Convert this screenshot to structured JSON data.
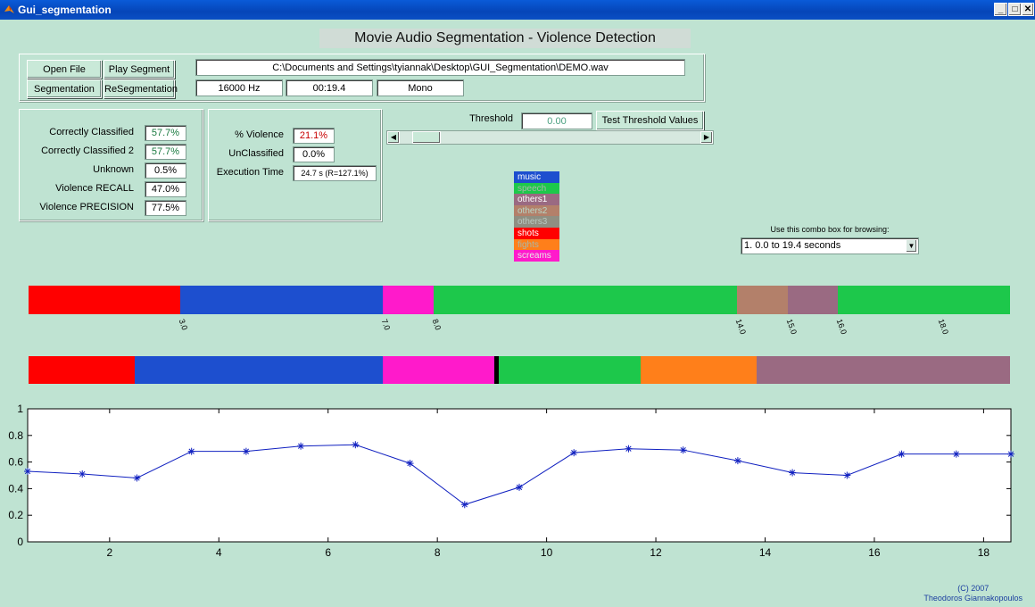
{
  "window": {
    "title": "Gui_segmentation"
  },
  "header": {
    "title": "Movie Audio Segmentation - Violence Detection"
  },
  "buttons": {
    "open_file": "Open File",
    "play_segment": "Play Segment",
    "segmentation": "Segmentation",
    "resegmentation": "ReSegmentation",
    "test_threshold": "Test Threshold Values"
  },
  "file": {
    "path": "C:\\Documents and Settings\\tyiannak\\Desktop\\GUI_Segmentation\\DEMO.wav",
    "sample_rate": "16000 Hz",
    "duration": "00:19.4",
    "channels": "Mono"
  },
  "stats_left": [
    {
      "label": "Correctly Classified",
      "value": "57.7%",
      "color": "#1a7a40"
    },
    {
      "label": "Correctly Classified 2",
      "value": "57.7%",
      "color": "#1a7a40"
    },
    {
      "label": "Unknown",
      "value": "0.5%",
      "color": "#000000"
    },
    {
      "label": "Violence RECALL",
      "value": "47.0%",
      "color": "#000000"
    },
    {
      "label": "Violence PRECISION",
      "value": "77.5%",
      "color": "#000000"
    }
  ],
  "stats_right": [
    {
      "label": "% Violence",
      "value": "21.1%",
      "color": "#c80000"
    },
    {
      "label": "UnClassified",
      "value": "0.0%",
      "color": "#000000"
    },
    {
      "label": "Execution Time",
      "value": "24.7 s (R=127.1%)",
      "color": "#000000"
    }
  ],
  "threshold": {
    "label": "Threshold",
    "value": "0.00",
    "slider_fraction": 0
  },
  "legend": [
    {
      "label": "music",
      "bg": "#1d4fcf",
      "fg": "#ffffff"
    },
    {
      "label": "speech",
      "bg": "#1dc84b",
      "fg": "#a8b8a8"
    },
    {
      "label": "others1",
      "bg": "#9a6a82",
      "fg": "#ffffff"
    },
    {
      "label": "others2",
      "bg": "#b3806a",
      "fg": "#b8d8c8"
    },
    {
      "label": "others3",
      "bg": "#8f8f82",
      "fg": "#b8c8c0"
    },
    {
      "label": "shots",
      "bg": "#ff0000",
      "fg": "#ffffff"
    },
    {
      "label": "fights",
      "bg": "#ff7f1a",
      "fg": "#a8b8a8"
    },
    {
      "label": "screams",
      "bg": "#ff1acb",
      "fg": "#e8e8e8"
    }
  ],
  "browse": {
    "label": "Use this combo box for browsing:",
    "selected": "1. 0.0 to 19.4 seconds"
  },
  "timeline_range": [
    0,
    19.4
  ],
  "segmentation_top": {
    "segments": [
      {
        "start": 0,
        "end": 3.0,
        "color": "#ff0000"
      },
      {
        "start": 3.0,
        "end": 7.0,
        "color": "#1d4fcf"
      },
      {
        "start": 7.0,
        "end": 8.0,
        "color": "#ff1acb"
      },
      {
        "start": 8.0,
        "end": 14.0,
        "color": "#1dc84b"
      },
      {
        "start": 14.0,
        "end": 15.0,
        "color": "#b3806a"
      },
      {
        "start": 15.0,
        "end": 16.0,
        "color": "#9a6a82"
      },
      {
        "start": 16.0,
        "end": 19.4,
        "color": "#1dc84b"
      }
    ],
    "tick_labels": [
      {
        "value": 3.0,
        "label": "3.0"
      },
      {
        "value": 7.0,
        "label": "7.0"
      },
      {
        "value": 8.0,
        "label": "8.0"
      },
      {
        "value": 14.0,
        "label": "14.0"
      },
      {
        "value": 15.0,
        "label": "15.0"
      },
      {
        "value": 16.0,
        "label": "16.0"
      },
      {
        "value": 18.0,
        "label": "18.0"
      }
    ]
  },
  "segmentation_bottom": {
    "segments": [
      {
        "start": 0,
        "end": 2.1,
        "color": "#ff0000"
      },
      {
        "start": 2.1,
        "end": 7.0,
        "color": "#1d4fcf"
      },
      {
        "start": 7.0,
        "end": 9.2,
        "color": "#ff1acb"
      },
      {
        "start": 9.2,
        "end": 9.3,
        "color": "#000000"
      },
      {
        "start": 9.3,
        "end": 12.1,
        "color": "#1dc84b"
      },
      {
        "start": 12.1,
        "end": 14.4,
        "color": "#ff7f1a"
      },
      {
        "start": 14.4,
        "end": 19.4,
        "color": "#9a6a82"
      }
    ]
  },
  "chart_data": {
    "type": "line",
    "title": "",
    "xlabel": "",
    "ylabel": "",
    "xlim": [
      0.5,
      18.5
    ],
    "ylim": [
      0,
      1
    ],
    "xticks": [
      2,
      4,
      6,
      8,
      10,
      12,
      14,
      16,
      18
    ],
    "yticks": [
      0,
      0.2,
      0.4,
      0.6,
      0.8,
      1
    ],
    "grid": false,
    "line_color": "#1020c0",
    "marker": "*",
    "x": [
      0.5,
      1.5,
      2.5,
      3.5,
      4.5,
      5.5,
      6.5,
      7.5,
      8.5,
      9.5,
      10.5,
      11.5,
      12.5,
      13.5,
      14.5,
      15.5,
      16.5,
      17.5,
      18.5
    ],
    "y": [
      0.53,
      0.51,
      0.48,
      0.68,
      0.68,
      0.72,
      0.73,
      0.59,
      0.28,
      0.41,
      0.67,
      0.7,
      0.69,
      0.61,
      0.52,
      0.5,
      0.66,
      0.66,
      0.66
    ]
  },
  "credits": {
    "line1": "(C) 2007",
    "line2": "Theodoros Giannakopoulos"
  }
}
